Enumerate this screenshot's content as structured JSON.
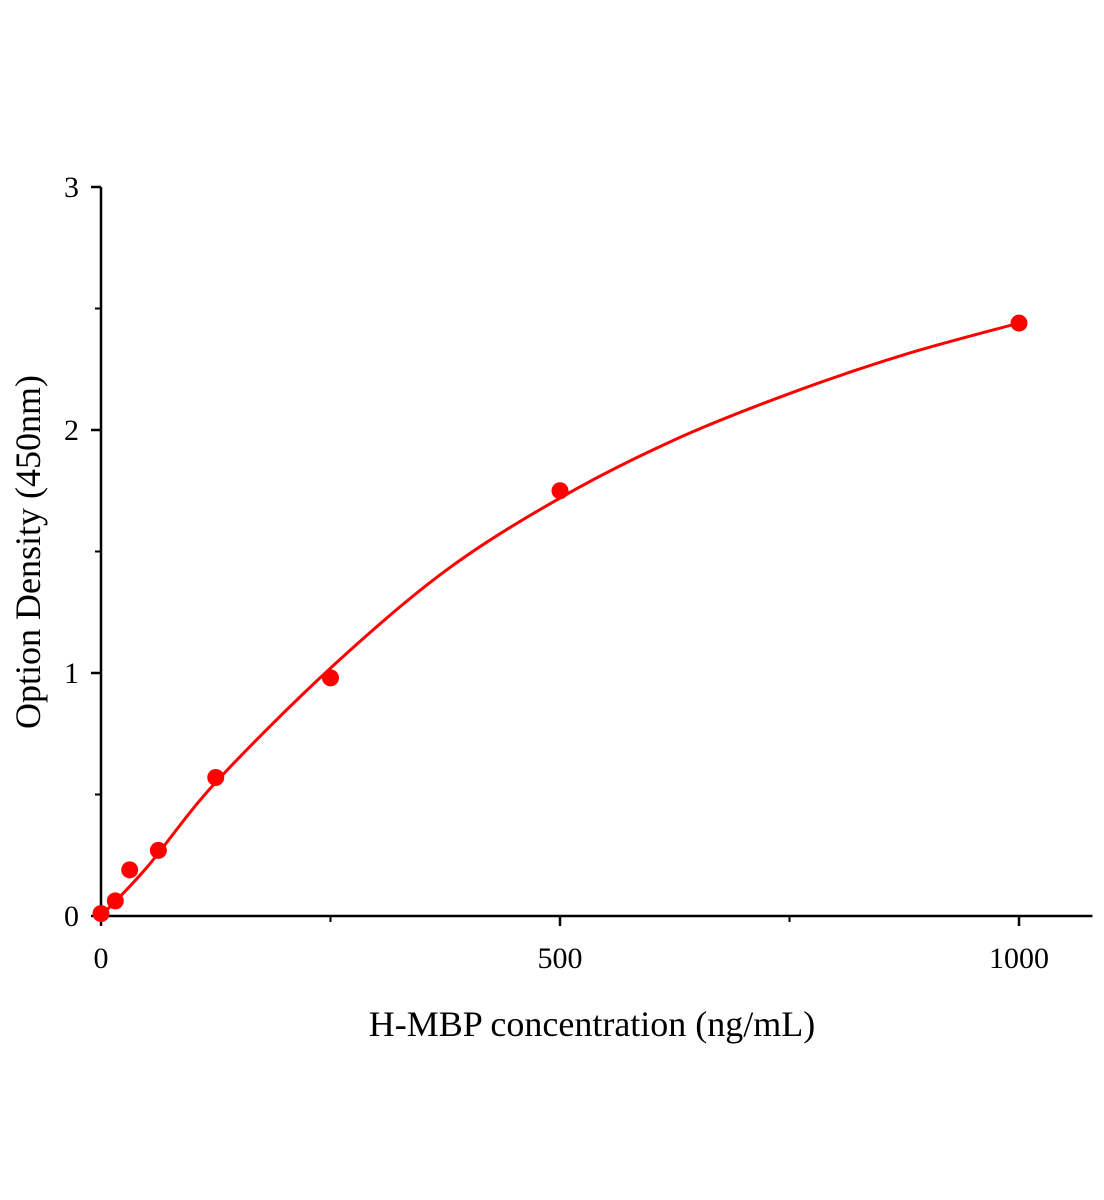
{
  "chart_data": {
    "type": "scatter",
    "title": "",
    "xlabel": "H-MBP concentration (ng/mL)",
    "ylabel": "Option Density (450nm)",
    "xlim": [
      0,
      1080
    ],
    "ylim": [
      0,
      3
    ],
    "x_ticks": [
      0,
      500,
      1000
    ],
    "x_minor_ticks": [
      250,
      750
    ],
    "y_ticks": [
      0,
      1,
      2,
      3
    ],
    "y_minor_ticks": [
      0.5,
      1.5,
      2.5
    ],
    "grid": false,
    "color": "#ff0000",
    "points": {
      "x": [
        0,
        15.6,
        31.25,
        62.5,
        125,
        250,
        500,
        1000
      ],
      "y": [
        0.01,
        0.062,
        0.19,
        0.27,
        0.57,
        0.98,
        1.75,
        2.44
      ]
    },
    "fit_curve": {
      "x": [
        0,
        50,
        125,
        250,
        375,
        500,
        625,
        750,
        875,
        1000
      ],
      "y": [
        0,
        0.2,
        0.55,
        1.02,
        1.42,
        1.72,
        1.96,
        2.15,
        2.31,
        2.44
      ]
    }
  }
}
